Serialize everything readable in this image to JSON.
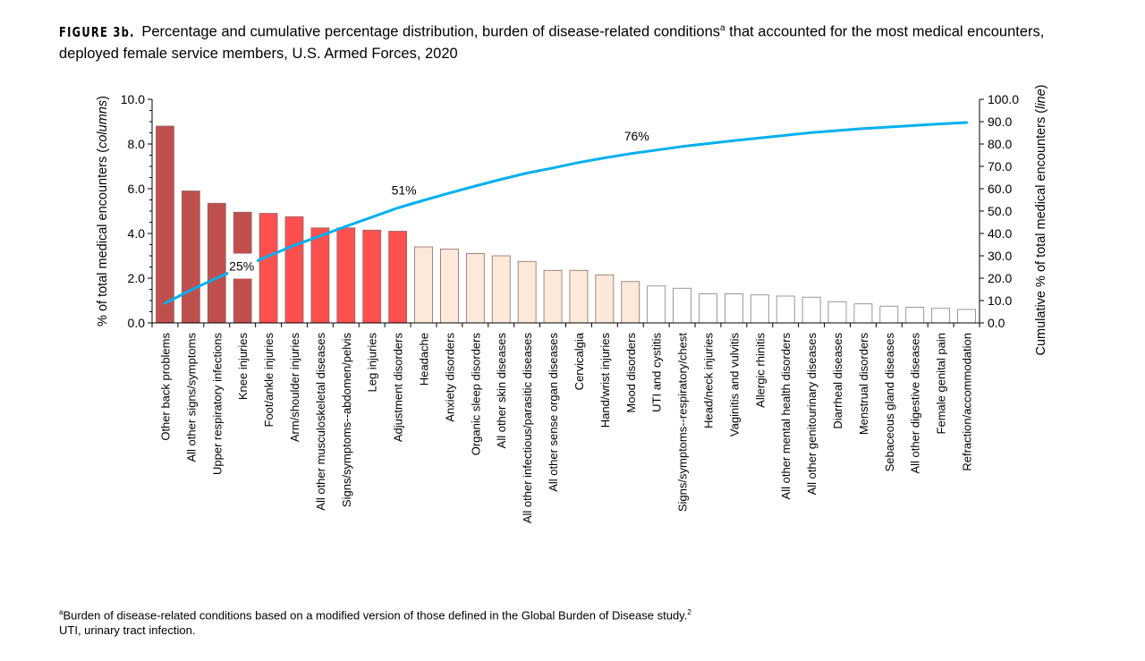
{
  "title": {
    "figure_label": "FIGURE 3b.",
    "text": "Percentage and cumulative percentage distribution, burden of disease-related conditions",
    "superscript": "a",
    "text_cont": " that accounted for the most medical encounters, deployed female service members, U.S. Armed Forces, 2020"
  },
  "footnotes": {
    "note_a_marker": "a",
    "note_a": "Burden of disease-related conditions based on a modified version of those defined in the Global Burden of Disease study.",
    "note_a_ref": "2",
    "uti": "UTI, urinary tract infection."
  },
  "chart_data": {
    "type": "bar+line",
    "ylabel_left": "% of total medical encounters (",
    "ylabel_left_italic": "columns",
    "ylabel_left_end": ")",
    "ylabel_right": "Cumulative % of total medical encounters (",
    "ylabel_right_italic": "line",
    "ylabel_right_end": ")",
    "ylim_left": [
      0,
      10
    ],
    "ylim_right": [
      0,
      100
    ],
    "yticks_left": [
      "0.0",
      "2.0",
      "4.0",
      "6.0",
      "8.0",
      "10.0"
    ],
    "yticks_right": [
      "0.0",
      "10.0",
      "20.0",
      "30.0",
      "40.0",
      "50.0",
      "60.0",
      "70.0",
      "80.0",
      "90.0",
      "100.0"
    ],
    "grid": false,
    "categories": [
      "Other back problems",
      "All other signs/symptoms",
      "Upper respiratory infections",
      "Knee injuries",
      "Foot/ankle injuries",
      "Arm/shoulder injuries",
      "All other musculoskeletal diseases",
      "Signs/symptoms--abdomen/pelvis",
      "Leg injuries",
      "Adjustment disorders",
      "Headache",
      "Anxiety disorders",
      "Organic sleep disorders",
      "All other skin diseases",
      "All other infectious/parasitic diseases",
      "All other sense organ diseases",
      "Cervicalgia",
      "Hand/wrist injuries",
      "Mood disorders",
      "UTI and cystitis",
      "Signs/symptoms--respiratory/chest",
      "Head/neck injuries",
      "Vaginitis and vulvitis",
      "Allergic rhinitis",
      "All other mental health disorders",
      "All other genitourinary diseases",
      "Diarrheal diseases",
      "Menstrual disorders",
      "Sebaceous gland diseases",
      "All other digestive diseases",
      "Female genital pain",
      "Refraction/accommodation"
    ],
    "values": [
      8.8,
      5.9,
      5.35,
      4.95,
      4.9,
      4.75,
      4.25,
      4.25,
      4.15,
      4.1,
      3.4,
      3.3,
      3.1,
      3.0,
      2.75,
      2.35,
      2.35,
      2.15,
      1.85,
      1.65,
      1.55,
      1.3,
      1.3,
      1.25,
      1.2,
      1.15,
      0.95,
      0.85,
      0.75,
      0.7,
      0.65,
      0.6
    ],
    "cumulative": [
      8.8,
      14.7,
      20.1,
      25.0,
      29.9,
      34.7,
      38.9,
      43.2,
      47.3,
      51.4,
      54.8,
      58.1,
      61.2,
      64.2,
      67.0,
      69.3,
      71.7,
      73.8,
      75.7,
      77.3,
      78.9,
      80.2,
      81.5,
      82.7,
      83.9,
      85.1,
      86.0,
      86.9,
      87.6,
      88.3,
      89.0,
      89.6
    ],
    "bar_group_colors": [
      "#c0504d",
      "#c0504d",
      "#c0504d",
      "#c0504d",
      "#ff5050",
      "#ff5050",
      "#ff5050",
      "#ff5050",
      "#ff5050",
      "#ff5050",
      "#fde9d9",
      "#fde9d9",
      "#fde9d9",
      "#fde9d9",
      "#fde9d9",
      "#fde9d9",
      "#fde9d9",
      "#fde9d9",
      "#fde9d9",
      "#ffffff",
      "#ffffff",
      "#ffffff",
      "#ffffff",
      "#ffffff",
      "#ffffff",
      "#ffffff",
      "#ffffff",
      "#ffffff",
      "#ffffff",
      "#ffffff",
      "#ffffff",
      "#ffffff"
    ],
    "line_color": "#00b0f0",
    "annotations": [
      {
        "label": "25%",
        "category_index": 3
      },
      {
        "label": "51%",
        "category_index": 9
      },
      {
        "label": "76%",
        "category_index": 18
      }
    ]
  }
}
